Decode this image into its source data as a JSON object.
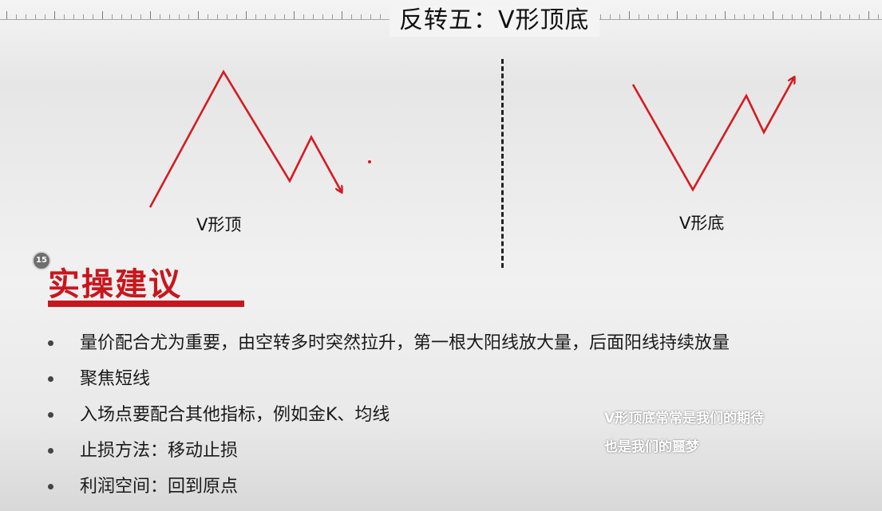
{
  "slide": {
    "title": "反转五：V形顶底",
    "badge": "15"
  },
  "patterns": {
    "v_top_label": "V形顶",
    "v_bottom_label": "V形底",
    "line_color": "#d51a20"
  },
  "section": {
    "heading": "实操建议",
    "accent_color": "#c8161d"
  },
  "tips": [
    "量价配合尤为重要，由空转多时突然拉升，第一根大阳线放大量，后面阳线持续放量",
    "聚焦短线",
    "入场点要配合其他指标，例如金K、均线",
    "止损方法：移动止损",
    "利润空间：回到原点"
  ],
  "caption": {
    "line1": "V形顶底常常是我们的期待",
    "line2": "也是我们的噩梦"
  }
}
